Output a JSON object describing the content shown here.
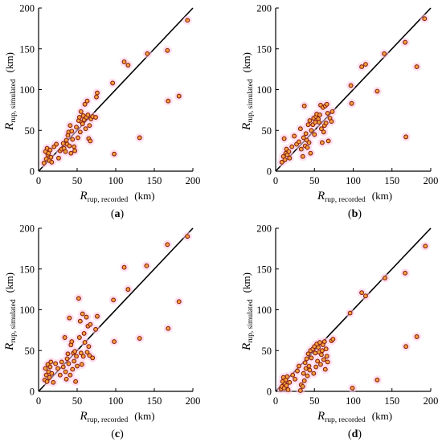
{
  "figure": {
    "marker_fill": "#ffc9e4",
    "marker_stroke": "#8b1d12",
    "marker_core": "#f2a23c",
    "line_color": "#000000"
  },
  "chart_data": [
    {
      "type": "scatter",
      "label_open": "(",
      "label_letter": "a",
      "label_close": ")",
      "xlabel_main": "R",
      "xlabel_sub": "rup, recorded",
      "xlabel_unit": "(km)",
      "ylabel_main": "R",
      "ylabel_sub": "rup, simulated",
      "ylabel_unit": "(km)",
      "xlim": [
        0,
        200
      ],
      "ylim": [
        0,
        200
      ],
      "xticks": [
        0,
        50,
        100,
        150,
        200
      ],
      "yticks": [
        0,
        50,
        100,
        150,
        200
      ],
      "reference_line": [
        [
          0,
          0
        ],
        [
          200,
          200
        ]
      ],
      "points": [
        [
          7,
          10
        ],
        [
          9,
          24
        ],
        [
          10,
          15
        ],
        [
          11,
          28
        ],
        [
          12,
          20
        ],
        [
          13,
          22
        ],
        [
          14,
          13
        ],
        [
          15,
          26
        ],
        [
          16,
          17
        ],
        [
          17,
          11
        ],
        [
          20,
          30
        ],
        [
          23,
          33
        ],
        [
          26,
          16
        ],
        [
          28,
          25
        ],
        [
          30,
          27
        ],
        [
          32,
          34
        ],
        [
          33,
          28
        ],
        [
          35,
          24
        ],
        [
          36,
          38
        ],
        [
          37,
          33
        ],
        [
          38,
          44
        ],
        [
          39,
          48
        ],
        [
          40,
          31
        ],
        [
          41,
          56
        ],
        [
          42,
          22
        ],
        [
          43,
          49
        ],
        [
          44,
          39
        ],
        [
          46,
          30
        ],
        [
          47,
          25
        ],
        [
          49,
          54
        ],
        [
          51,
          41
        ],
        [
          52,
          62
        ],
        [
          53,
          66
        ],
        [
          54,
          48
        ],
        [
          55,
          73
        ],
        [
          56,
          60
        ],
        [
          57,
          58
        ],
        [
          58,
          68
        ],
        [
          59,
          63
        ],
        [
          60,
          82
        ],
        [
          61,
          52
        ],
        [
          62,
          66
        ],
        [
          63,
          86
        ],
        [
          64,
          69
        ],
        [
          65,
          40
        ],
        [
          66,
          56
        ],
        [
          67,
          37
        ],
        [
          68,
          64
        ],
        [
          70,
          67
        ],
        [
          74,
          66
        ],
        [
          75,
          91
        ],
        [
          76,
          96
        ],
        [
          96,
          108
        ],
        [
          98,
          21
        ],
        [
          111,
          134
        ],
        [
          116,
          130
        ],
        [
          131,
          41
        ],
        [
          141,
          144
        ],
        [
          167,
          148
        ],
        [
          168,
          86
        ],
        [
          182,
          92
        ],
        [
          193,
          185
        ]
      ]
    },
    {
      "type": "scatter",
      "label_open": "(",
      "label_letter": "b",
      "label_close": ")",
      "xlabel_main": "R",
      "xlabel_sub": "rup, recorded",
      "xlabel_unit": "(km)",
      "ylabel_main": "R",
      "ylabel_sub": "rup, simulated",
      "ylabel_unit": "(km)",
      "xlim": [
        0,
        200
      ],
      "ylim": [
        0,
        200
      ],
      "xticks": [
        0,
        50,
        100,
        150,
        200
      ],
      "yticks": [
        0,
        50,
        100,
        150,
        200
      ],
      "reference_line": [
        [
          0,
          0
        ],
        [
          200,
          200
        ]
      ],
      "points": [
        [
          8,
          11
        ],
        [
          10,
          18
        ],
        [
          11,
          40
        ],
        [
          12,
          14
        ],
        [
          13,
          22
        ],
        [
          14,
          27
        ],
        [
          15,
          20
        ],
        [
          17,
          24
        ],
        [
          18,
          16
        ],
        [
          21,
          30
        ],
        [
          24,
          43
        ],
        [
          27,
          33
        ],
        [
          30,
          36
        ],
        [
          32,
          52
        ],
        [
          33,
          27
        ],
        [
          35,
          18
        ],
        [
          36,
          41
        ],
        [
          37,
          80
        ],
        [
          38,
          31
        ],
        [
          39,
          46
        ],
        [
          40,
          38
        ],
        [
          41,
          29
        ],
        [
          42,
          57
        ],
        [
          43,
          35
        ],
        [
          44,
          62
        ],
        [
          45,
          22
        ],
        [
          46,
          50
        ],
        [
          48,
          57
        ],
        [
          49,
          65
        ],
        [
          50,
          45
        ],
        [
          51,
          60
        ],
        [
          52,
          67
        ],
        [
          53,
          70
        ],
        [
          55,
          64
        ],
        [
          56,
          60
        ],
        [
          57,
          69
        ],
        [
          58,
          81
        ],
        [
          59,
          52
        ],
        [
          60,
          35
        ],
        [
          61,
          78
        ],
        [
          62,
          48
        ],
        [
          63,
          56
        ],
        [
          64,
          80
        ],
        [
          65,
          59
        ],
        [
          66,
          82
        ],
        [
          67,
          71
        ],
        [
          68,
          37
        ],
        [
          70,
          65
        ],
        [
          72,
          61
        ],
        [
          73,
          73
        ],
        [
          97,
          105
        ],
        [
          98,
          83
        ],
        [
          111,
          128
        ],
        [
          116,
          131
        ],
        [
          131,
          98
        ],
        [
          140,
          144
        ],
        [
          167,
          158
        ],
        [
          168,
          42
        ],
        [
          182,
          128
        ],
        [
          192,
          187
        ]
      ]
    },
    {
      "type": "scatter",
      "label_open": "(",
      "label_letter": "c",
      "label_close": ")",
      "xlabel_main": "R",
      "xlabel_sub": "rup, recorded",
      "xlabel_unit": "(km)",
      "ylabel_main": "R",
      "ylabel_sub": "rup, simulated",
      "ylabel_unit": "(km)",
      "xlim": [
        0,
        200
      ],
      "ylim": [
        0,
        200
      ],
      "xticks": [
        0,
        50,
        100,
        150,
        200
      ],
      "yticks": [
        0,
        50,
        100,
        150,
        200
      ],
      "reference_line": [
        [
          0,
          0
        ],
        [
          200,
          200
        ]
      ],
      "points": [
        [
          8,
          14
        ],
        [
          9,
          28
        ],
        [
          10,
          20
        ],
        [
          11,
          12
        ],
        [
          12,
          33
        ],
        [
          13,
          24
        ],
        [
          14,
          17
        ],
        [
          15,
          30
        ],
        [
          16,
          36
        ],
        [
          17,
          22
        ],
        [
          19,
          11
        ],
        [
          22,
          34
        ],
        [
          25,
          28
        ],
        [
          28,
          20
        ],
        [
          30,
          36
        ],
        [
          32,
          30
        ],
        [
          34,
          66
        ],
        [
          35,
          24
        ],
        [
          36,
          15
        ],
        [
          37,
          40
        ],
        [
          38,
          46
        ],
        [
          39,
          34
        ],
        [
          40,
          90
        ],
        [
          41,
          20
        ],
        [
          42,
          57
        ],
        [
          43,
          61
        ],
        [
          44,
          27
        ],
        [
          45,
          47
        ],
        [
          46,
          37
        ],
        [
          47,
          49
        ],
        [
          48,
          12
        ],
        [
          49,
          43
        ],
        [
          50,
          31
        ],
        [
          52,
          114
        ],
        [
          53,
          66
        ],
        [
          54,
          86
        ],
        [
          55,
          47
        ],
        [
          56,
          33
        ],
        [
          57,
          95
        ],
        [
          58,
          43
        ],
        [
          59,
          71
        ],
        [
          60,
          60
        ],
        [
          62,
          91
        ],
        [
          63,
          48
        ],
        [
          64,
          80
        ],
        [
          65,
          55
        ],
        [
          66,
          44
        ],
        [
          67,
          82
        ],
        [
          70,
          41
        ],
        [
          74,
          76
        ],
        [
          76,
          92
        ],
        [
          97,
          112
        ],
        [
          98,
          61
        ],
        [
          111,
          152
        ],
        [
          116,
          125
        ],
        [
          131,
          65
        ],
        [
          140,
          154
        ],
        [
          167,
          180
        ],
        [
          168,
          77
        ],
        [
          182,
          110
        ],
        [
          193,
          190
        ]
      ]
    },
    {
      "type": "scatter",
      "label_open": "(",
      "label_letter": "d",
      "label_close": ")",
      "xlabel_main": "R",
      "xlabel_sub": "rup, recorded",
      "xlabel_unit": "(km)",
      "ylabel_main": "R",
      "ylabel_sub": "rup, simulated",
      "ylabel_unit": "(km)",
      "xlim": [
        0,
        200
      ],
      "ylim": [
        0,
        200
      ],
      "xticks": [
        0,
        50,
        100,
        150,
        200
      ],
      "yticks": [
        0,
        50,
        100,
        150,
        200
      ],
      "reference_line": [
        [
          0,
          0
        ],
        [
          200,
          200
        ]
      ],
      "points": [
        [
          7,
          3
        ],
        [
          8,
          6
        ],
        [
          9,
          12
        ],
        [
          10,
          17
        ],
        [
          11,
          4
        ],
        [
          12,
          9
        ],
        [
          13,
          14
        ],
        [
          14,
          7
        ],
        [
          15,
          18
        ],
        [
          16,
          2
        ],
        [
          18,
          11
        ],
        [
          22,
          20
        ],
        [
          25,
          15
        ],
        [
          28,
          25
        ],
        [
          30,
          31
        ],
        [
          32,
          1
        ],
        [
          33,
          8
        ],
        [
          35,
          6
        ],
        [
          36,
          22
        ],
        [
          37,
          13
        ],
        [
          38,
          35
        ],
        [
          39,
          28
        ],
        [
          40,
          40
        ],
        [
          41,
          19
        ],
        [
          42,
          46
        ],
        [
          43,
          31
        ],
        [
          44,
          26
        ],
        [
          45,
          50
        ],
        [
          46,
          41
        ],
        [
          48,
          52
        ],
        [
          49,
          22
        ],
        [
          50,
          55
        ],
        [
          51,
          47
        ],
        [
          52,
          30
        ],
        [
          53,
          58
        ],
        [
          54,
          37
        ],
        [
          55,
          54
        ],
        [
          56,
          48
        ],
        [
          57,
          60
        ],
        [
          58,
          33
        ],
        [
          59,
          45
        ],
        [
          60,
          50
        ],
        [
          61,
          57
        ],
        [
          62,
          39
        ],
        [
          63,
          61
        ],
        [
          64,
          27
        ],
        [
          65,
          52
        ],
        [
          66,
          43
        ],
        [
          67,
          36
        ],
        [
          72,
          62
        ],
        [
          74,
          64
        ],
        [
          96,
          96
        ],
        [
          99,
          4
        ],
        [
          111,
          121
        ],
        [
          116,
          117
        ],
        [
          131,
          14
        ],
        [
          141,
          139
        ],
        [
          167,
          145
        ],
        [
          168,
          55
        ],
        [
          182,
          67
        ],
        [
          193,
          178
        ]
      ]
    }
  ]
}
